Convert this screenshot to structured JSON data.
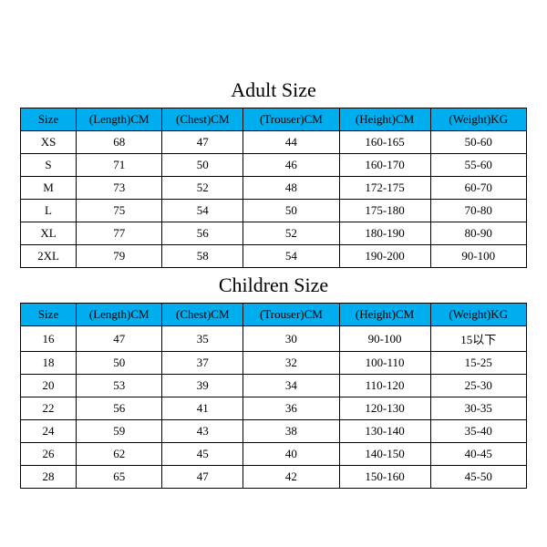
{
  "style": {
    "header_bg": "#00aeef",
    "title_font_size": 22,
    "cell_font_size": 13,
    "border_color": "#000000",
    "text_color": "#000000",
    "row_bg": "#ffffff"
  },
  "tables": [
    {
      "title": "Adult Size",
      "columns": [
        "Size",
        "(Length)CM",
        "(Chest)CM",
        "(Trouser)CM",
        "(Height)CM",
        "(Weight)KG"
      ],
      "rows": [
        [
          "XS",
          "68",
          "47",
          "44",
          "160-165",
          "50-60"
        ],
        [
          "S",
          "71",
          "50",
          "46",
          "160-170",
          "55-60"
        ],
        [
          "M",
          "73",
          "52",
          "48",
          "172-175",
          "60-70"
        ],
        [
          "L",
          "75",
          "54",
          "50",
          "175-180",
          "70-80"
        ],
        [
          "XL",
          "77",
          "56",
          "52",
          "180-190",
          "80-90"
        ],
        [
          "2XL",
          "79",
          "58",
          "54",
          "190-200",
          "90-100"
        ]
      ]
    },
    {
      "title": "Children Size",
      "columns": [
        "Size",
        "(Length)CM",
        "(Chest)CM",
        "(Trouser)CM",
        "(Height)CM",
        "(Weight)KG"
      ],
      "rows": [
        [
          "16",
          "47",
          "35",
          "30",
          "90-100",
          "15以下"
        ],
        [
          "18",
          "50",
          "37",
          "32",
          "100-110",
          "15-25"
        ],
        [
          "20",
          "53",
          "39",
          "34",
          "110-120",
          "25-30"
        ],
        [
          "22",
          "56",
          "41",
          "36",
          "120-130",
          "30-35"
        ],
        [
          "24",
          "59",
          "43",
          "38",
          "130-140",
          "35-40"
        ],
        [
          "26",
          "62",
          "45",
          "40",
          "140-150",
          "40-45"
        ],
        [
          "28",
          "65",
          "47",
          "42",
          "150-160",
          "45-50"
        ]
      ]
    }
  ]
}
